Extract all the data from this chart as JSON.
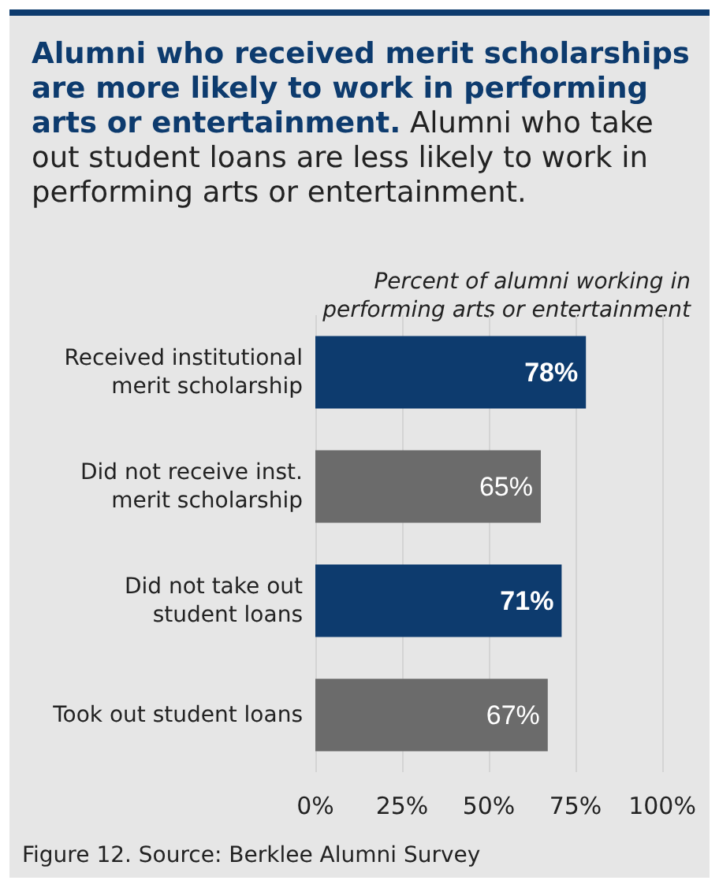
{
  "chart_data": {
    "type": "bar",
    "orientation": "horizontal",
    "title": "Alumni who received merit scholarships are more likely to work in performing arts or entertainment.",
    "subtitle": "Alumni who take out student loans are less likely to work in performing arts or entertainment.",
    "xlabel": "Percent of alumni working in performing arts or entertainment",
    "categories": [
      "Received institutional\nmerit scholarship",
      "Did not receive inst.\nmerit scholarship",
      "Did not take out\nstudent loans",
      "Took out student loans"
    ],
    "values": [
      78,
      65,
      71,
      67
    ],
    "colors": [
      "#0d3b6e",
      "#6b6b6b",
      "#0d3b6e",
      "#6b6b6b"
    ],
    "value_labels": [
      "78%",
      "65%",
      "71%",
      "67%"
    ],
    "xlim": [
      0,
      100
    ],
    "xticks": [
      {
        "value": 0,
        "label": "0%"
      },
      {
        "value": 25,
        "label": "25%"
      },
      {
        "value": 50,
        "label": "50%"
      },
      {
        "value": 75,
        "label": "75%"
      },
      {
        "value": 100,
        "label": "100%"
      }
    ],
    "grid": "x",
    "annotations": [
      "Figure 12. Source: Berklee Alumni Survey"
    ]
  }
}
